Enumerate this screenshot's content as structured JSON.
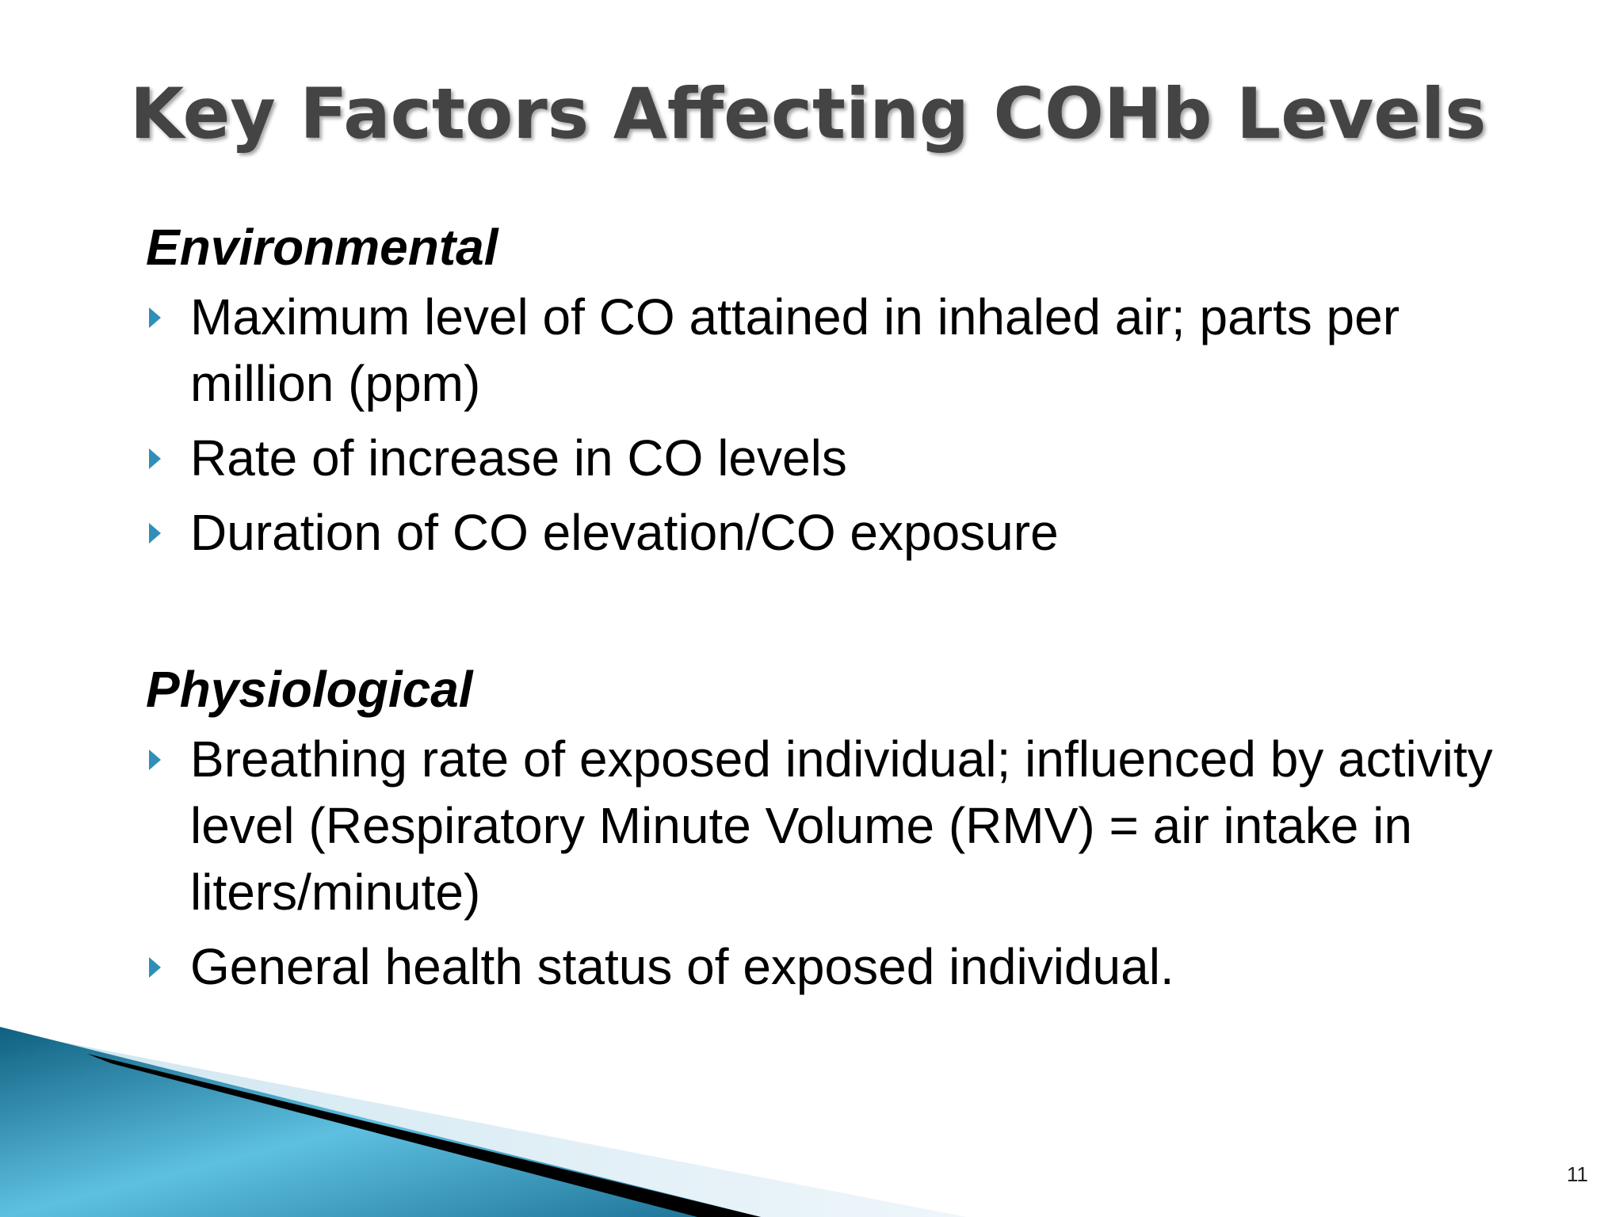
{
  "slide": {
    "title": "Key Factors Affecting COHb Levels",
    "sections": [
      {
        "heading": "Environmental",
        "bullets": [
          "Maximum level of CO attained in inhaled air; parts per million (ppm)",
          "Rate of increase in CO levels",
          "Duration of CO elevation/CO exposure"
        ]
      },
      {
        "heading": "Physiological",
        "bullets": [
          "Breathing rate of exposed individual; influenced by activity level (Respiratory Minute Volume (RMV) = air intake in liters/minute)",
          "General health status of exposed individual."
        ]
      }
    ],
    "page_number": "11"
  },
  "theme": {
    "title_color": "#444444",
    "bullet_color": "#2f8fb8",
    "accent_dark": "#0f5f80",
    "accent_light": "#5ec0e0"
  },
  "icons": {
    "bullet": "triangle-right-icon"
  }
}
